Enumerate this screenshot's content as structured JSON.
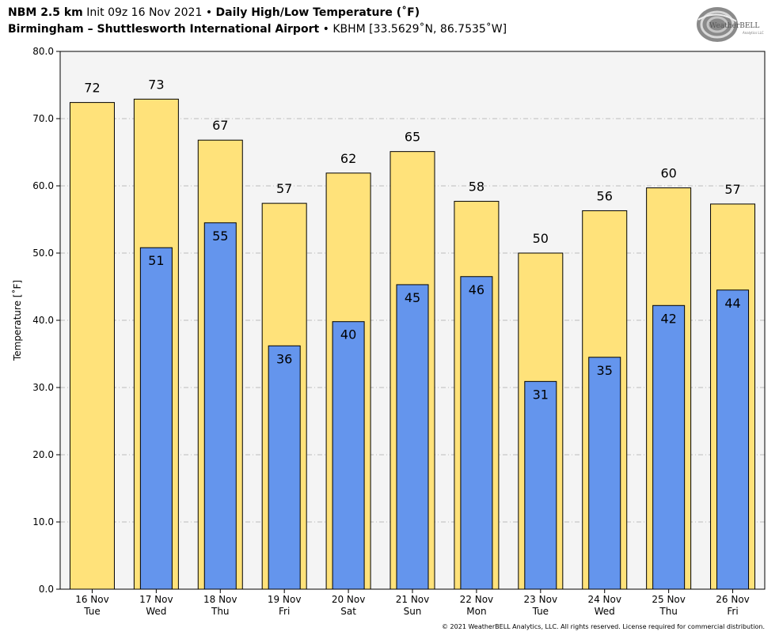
{
  "header": {
    "model": "NBM 2.5 km",
    "init": "Init 09z 16 Nov 2021",
    "bullet": "•",
    "product": "Daily High/Low Temperature (˚F)",
    "station": "Birmingham – Shuttlesworth International Airport",
    "station_id": "KBHM [33.5629˚N, 86.7535˚W]"
  },
  "logo": {
    "text": "WeatherBELL",
    "sub": "Analytics LLC"
  },
  "copyright": "© 2021 WeatherBELL Analytics, LLC. All rights reserved. License required for commercial distribution.",
  "colors": {
    "high": "#FFE27A",
    "low": "#6495ED",
    "plot_bg": "#F4F4F4",
    "grid": "#AAAAAA"
  },
  "chart_data": {
    "type": "bar",
    "ylabel": "Temperature [˚F]",
    "ylim": [
      0,
      80
    ],
    "yticks": [
      "0.0",
      "10.0",
      "20.0",
      "30.0",
      "40.0",
      "50.0",
      "60.0",
      "70.0",
      "80.0"
    ],
    "grid": true,
    "categories": [
      {
        "date": "16 Nov",
        "day": "Tue"
      },
      {
        "date": "17 Nov",
        "day": "Wed"
      },
      {
        "date": "18 Nov",
        "day": "Thu"
      },
      {
        "date": "19 Nov",
        "day": "Fri"
      },
      {
        "date": "20 Nov",
        "day": "Sat"
      },
      {
        "date": "21 Nov",
        "day": "Sun"
      },
      {
        "date": "22 Nov",
        "day": "Mon"
      },
      {
        "date": "23 Nov",
        "day": "Tue"
      },
      {
        "date": "24 Nov",
        "day": "Wed"
      },
      {
        "date": "25 Nov",
        "day": "Thu"
      },
      {
        "date": "26 Nov",
        "day": "Fri"
      }
    ],
    "series": [
      {
        "values": [
          72.4,
          72.9,
          66.8,
          57.4,
          61.9,
          65.1,
          57.7,
          50.0,
          56.3,
          59.7,
          57.3
        ],
        "labels": [
          "72",
          "73",
          "67",
          "57",
          "62",
          "65",
          "58",
          "50",
          "56",
          "60",
          "57"
        ]
      },
      {
        "values": [
          null,
          50.8,
          54.5,
          36.2,
          39.8,
          45.3,
          46.5,
          30.9,
          34.5,
          42.2,
          44.5
        ],
        "labels": [
          "",
          "51",
          "55",
          "36",
          "40",
          "45",
          "46",
          "31",
          "35",
          "42",
          "44"
        ]
      }
    ]
  }
}
